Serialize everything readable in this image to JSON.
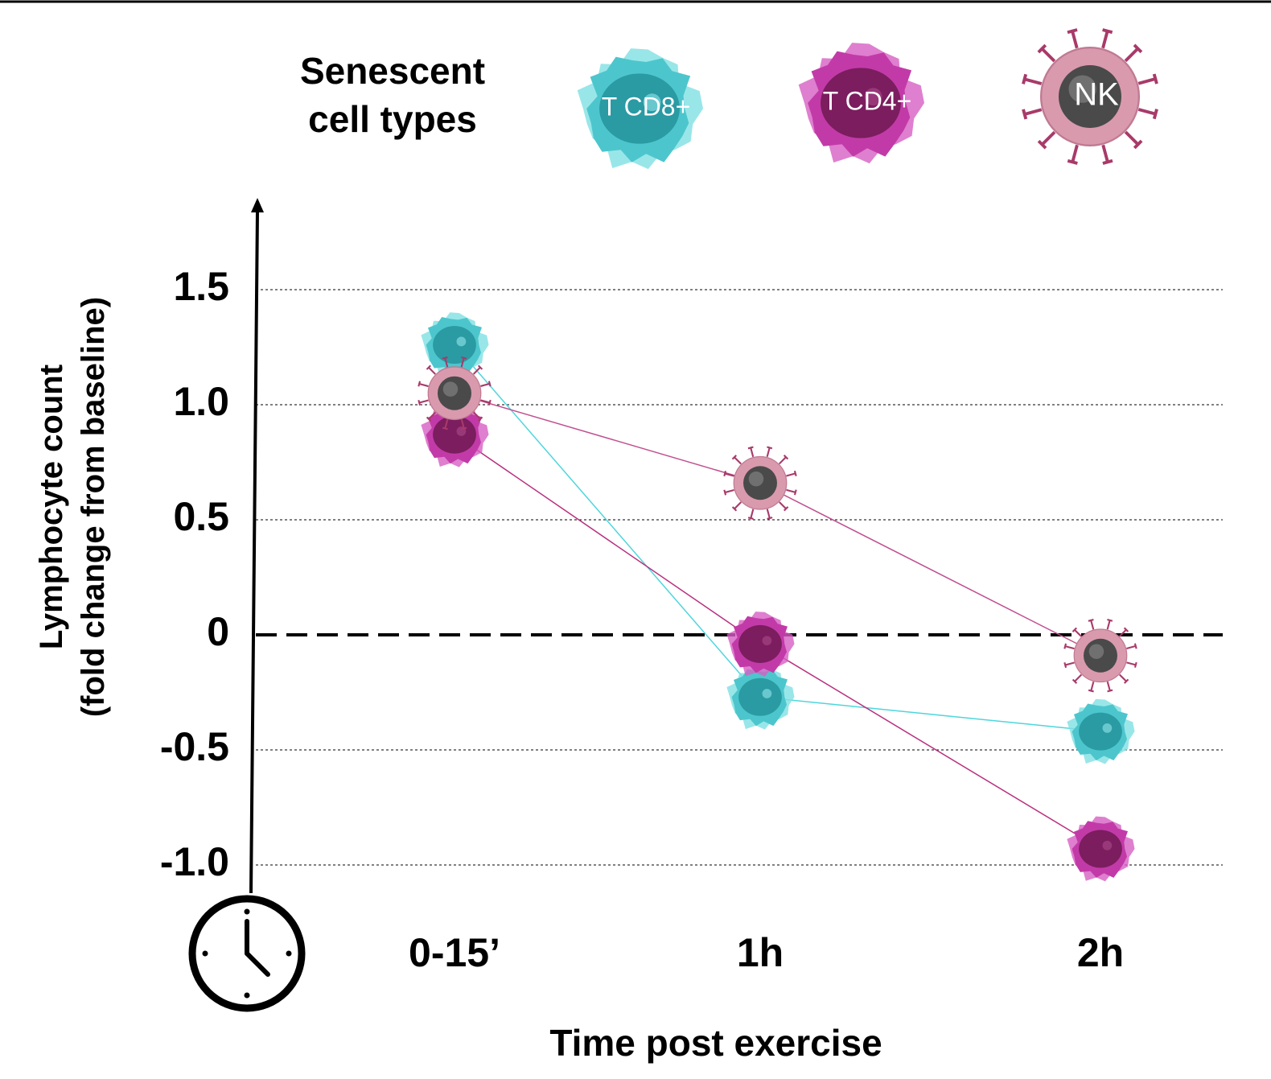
{
  "chart_data": {
    "type": "line",
    "legend_title": "Senescent cell types",
    "y_label": "Lymphocyte count\n(fold change from baseline)",
    "x_label": "Time post exercise",
    "categories": [
      "0-15’",
      "1h",
      "2h"
    ],
    "series": [
      {
        "name": "T CD8+",
        "color": "#4dd6dc",
        "values": [
          1.26,
          -0.27,
          -0.42
        ]
      },
      {
        "name": "T CD4+",
        "color": "#b8307e",
        "values": [
          0.87,
          -0.04,
          -0.93
        ]
      },
      {
        "name": "NK",
        "color": "#c0508e",
        "values": [
          1.05,
          0.66,
          -0.09
        ]
      }
    ],
    "ylim": [
      -1.1,
      1.9
    ],
    "yticks": [
      {
        "value": -1,
        "label": "-1.0"
      },
      -0.5,
      0,
      0.5,
      {
        "value": 1,
        "label": "1.0"
      },
      1.5
    ],
    "grid": true
  }
}
